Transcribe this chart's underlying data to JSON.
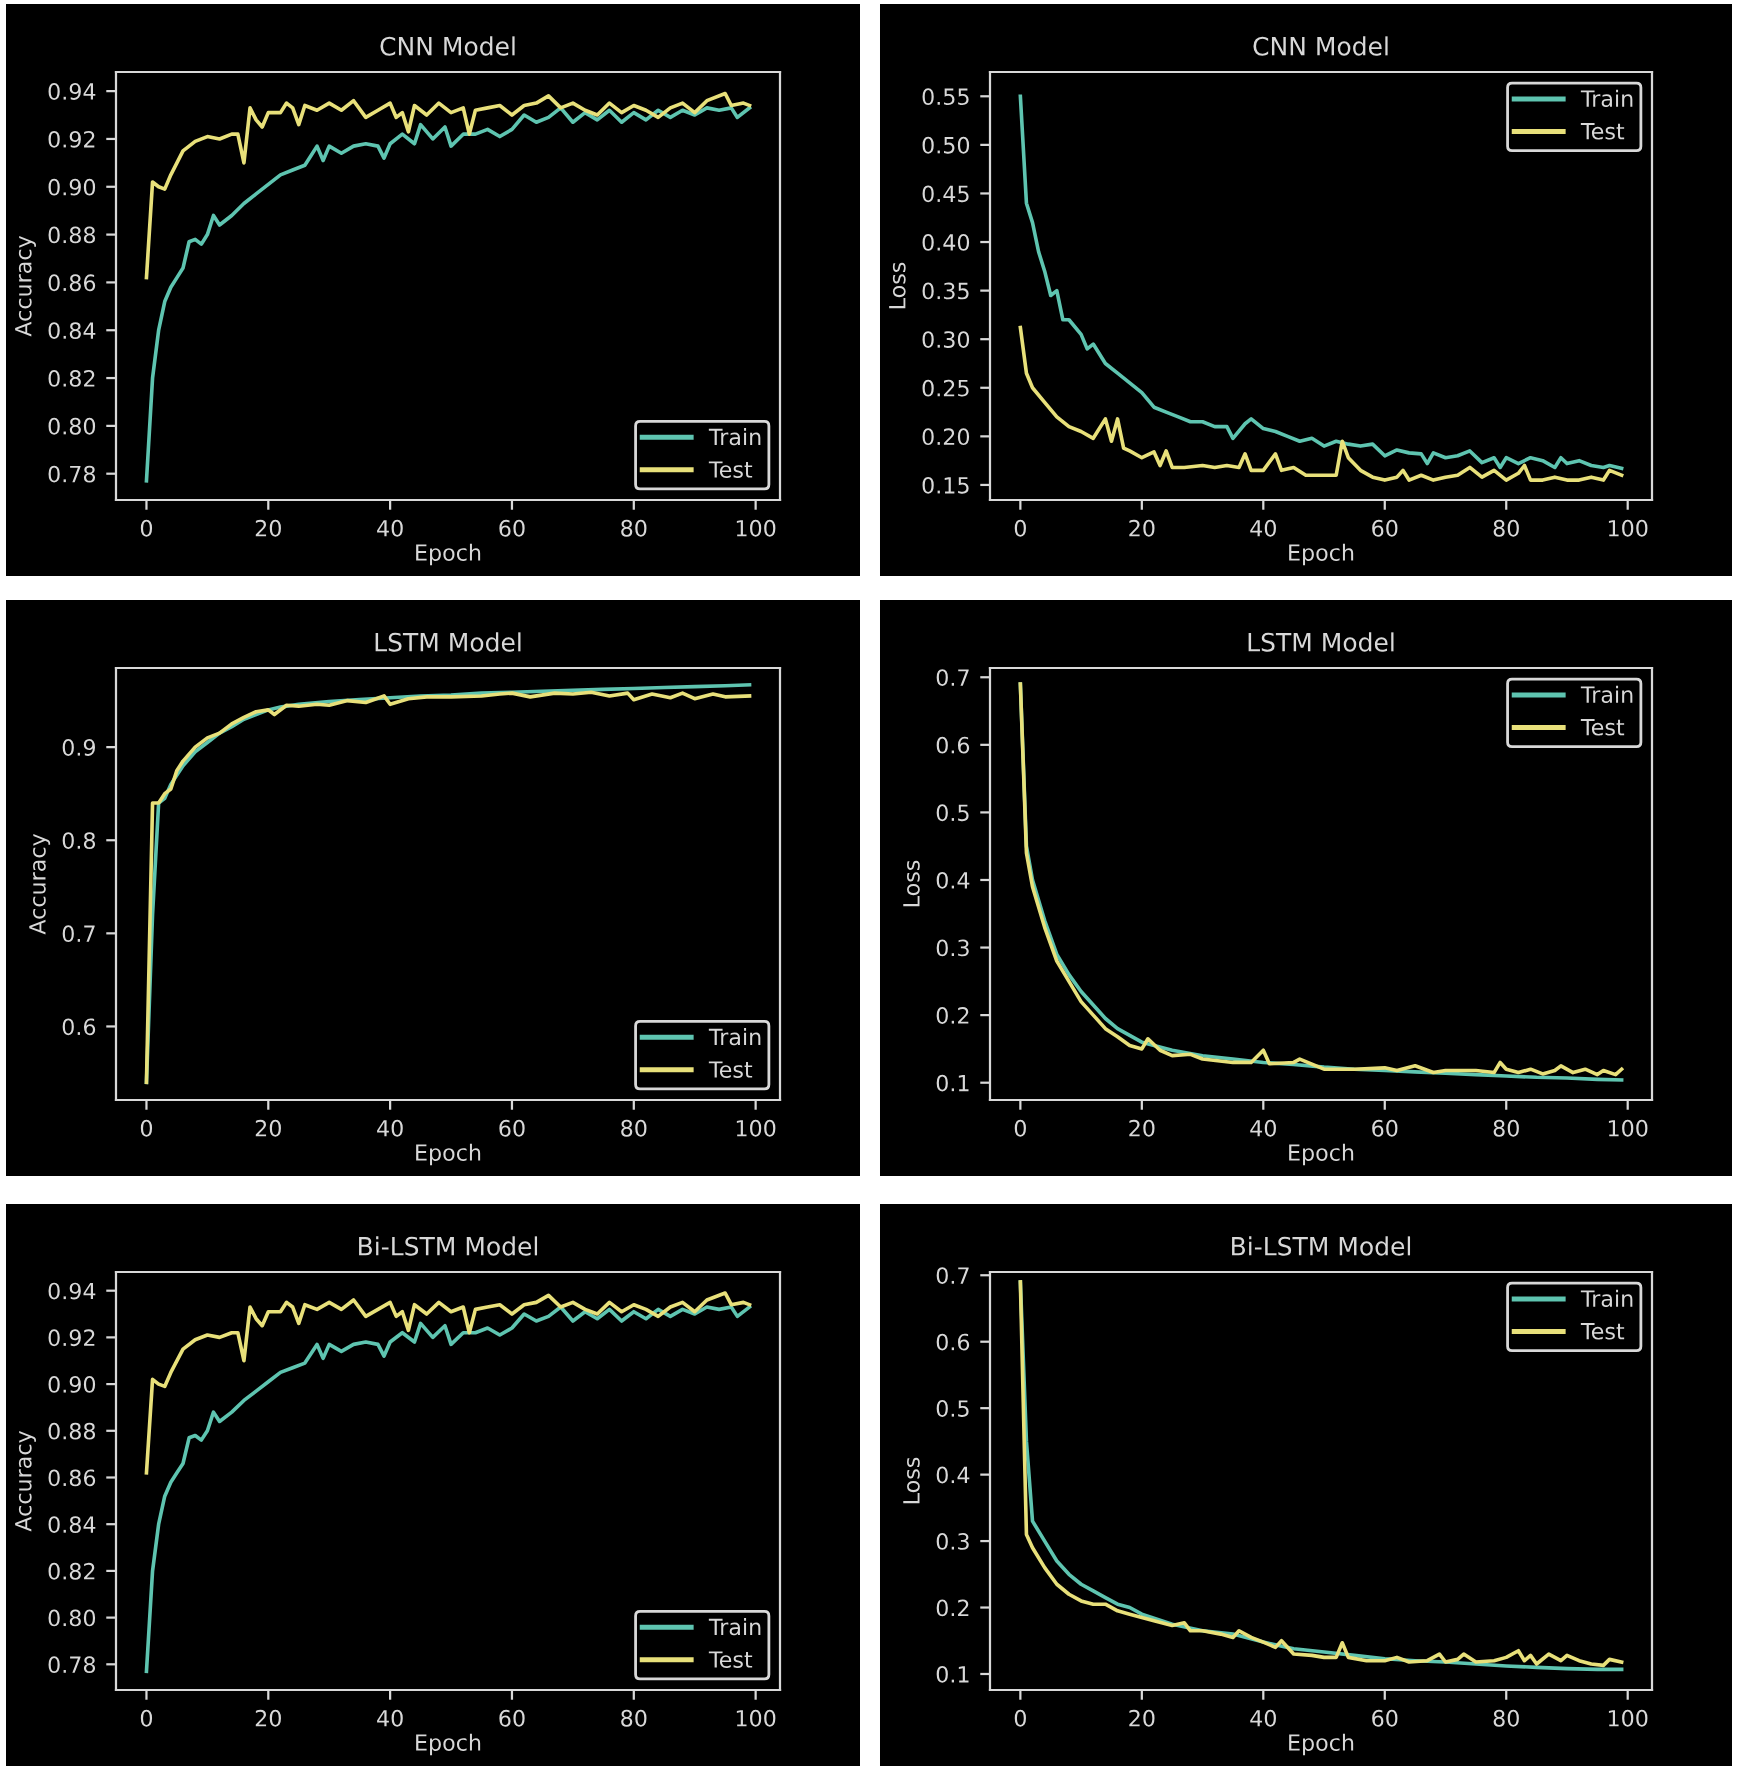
{
  "chart_data": [
    {
      "type": "line",
      "title": "CNN Model",
      "xlabel": "Epoch",
      "ylabel": "Accuracy",
      "xlim": [
        -5,
        104
      ],
      "xticks": [
        0,
        20,
        40,
        60,
        80,
        100
      ],
      "ylim": [
        0.769,
        0.948
      ],
      "yticks": [
        {
          "value": 0.78,
          "label": "0.78"
        },
        {
          "value": 0.8,
          "label": "0.80"
        },
        {
          "value": 0.82,
          "label": "0.82"
        },
        {
          "value": 0.84,
          "label": "0.84"
        },
        {
          "value": 0.86,
          "label": "0.86"
        },
        {
          "value": 0.88,
          "label": "0.88"
        },
        {
          "value": 0.9,
          "label": "0.90"
        },
        {
          "value": 0.92,
          "label": "0.92"
        },
        {
          "value": 0.94,
          "label": "0.94"
        }
      ],
      "legend": "bottom right",
      "series": [
        {
          "name": "Train",
          "color": "#5ec4b0",
          "x": [
            0,
            1,
            2,
            3,
            4,
            5,
            6,
            7,
            8,
            9,
            10,
            11,
            12,
            14,
            16,
            18,
            20,
            22,
            24,
            26,
            27,
            28,
            29,
            30,
            32,
            34,
            36,
            38,
            39,
            40,
            42,
            44,
            45,
            47,
            49,
            50,
            52,
            54,
            56,
            58,
            60,
            62,
            64,
            66,
            68,
            70,
            72,
            74,
            76,
            78,
            80,
            82,
            84,
            86,
            88,
            90,
            92,
            94,
            96,
            97,
            99
          ],
          "values": [
            0.777,
            0.82,
            0.84,
            0.852,
            0.858,
            0.862,
            0.866,
            0.877,
            0.878,
            0.876,
            0.88,
            0.888,
            0.884,
            0.888,
            0.893,
            0.897,
            0.901,
            0.905,
            0.907,
            0.909,
            0.913,
            0.917,
            0.911,
            0.917,
            0.914,
            0.917,
            0.918,
            0.917,
            0.912,
            0.918,
            0.922,
            0.918,
            0.926,
            0.92,
            0.925,
            0.917,
            0.922,
            0.922,
            0.924,
            0.921,
            0.924,
            0.93,
            0.927,
            0.929,
            0.933,
            0.927,
            0.931,
            0.928,
            0.932,
            0.927,
            0.931,
            0.928,
            0.932,
            0.929,
            0.932,
            0.93,
            0.933,
            0.932,
            0.933,
            0.929,
            0.933
          ]
        },
        {
          "name": "Test",
          "color": "#e8e07a",
          "x": [
            0,
            1,
            2,
            3,
            4,
            6,
            8,
            10,
            12,
            14,
            15,
            16,
            17,
            18,
            19,
            20,
            22,
            23,
            24,
            25,
            26,
            28,
            30,
            32,
            34,
            36,
            38,
            40,
            41,
            42,
            43,
            44,
            46,
            48,
            50,
            52,
            53,
            54,
            56,
            58,
            60,
            62,
            64,
            66,
            68,
            70,
            72,
            74,
            76,
            78,
            80,
            82,
            84,
            86,
            88,
            90,
            92,
            95,
            96,
            98,
            99
          ],
          "values": [
            0.862,
            0.902,
            0.9,
            0.899,
            0.905,
            0.915,
            0.919,
            0.921,
            0.92,
            0.922,
            0.922,
            0.91,
            0.933,
            0.928,
            0.925,
            0.931,
            0.931,
            0.935,
            0.933,
            0.926,
            0.934,
            0.932,
            0.935,
            0.932,
            0.936,
            0.929,
            0.932,
            0.935,
            0.929,
            0.931,
            0.923,
            0.934,
            0.93,
            0.935,
            0.931,
            0.933,
            0.922,
            0.932,
            0.933,
            0.934,
            0.93,
            0.934,
            0.935,
            0.938,
            0.933,
            0.935,
            0.932,
            0.93,
            0.935,
            0.931,
            0.934,
            0.932,
            0.929,
            0.933,
            0.935,
            0.931,
            0.936,
            0.939,
            0.934,
            0.935,
            0.934
          ]
        }
      ]
    },
    {
      "type": "line",
      "title": "CNN Model",
      "xlabel": "Epoch",
      "ylabel": "Loss",
      "xlim": [
        -5,
        104
      ],
      "xticks": [
        0,
        20,
        40,
        60,
        80,
        100
      ],
      "ylim": [
        0.1345,
        0.575
      ],
      "yticks": [
        {
          "value": 0.15,
          "label": "0.15"
        },
        {
          "value": 0.2,
          "label": "0.20"
        },
        {
          "value": 0.25,
          "label": "0.25"
        },
        {
          "value": 0.3,
          "label": "0.30"
        },
        {
          "value": 0.35,
          "label": "0.35"
        },
        {
          "value": 0.4,
          "label": "0.40"
        },
        {
          "value": 0.45,
          "label": "0.45"
        },
        {
          "value": 0.5,
          "label": "0.50"
        },
        {
          "value": 0.55,
          "label": "0.55"
        }
      ],
      "legend": "top right",
      "series": [
        {
          "name": "Train",
          "color": "#5ec4b0",
          "x": [
            0,
            1,
            2,
            3,
            4,
            5,
            6,
            7,
            8,
            10,
            11,
            12,
            14,
            16,
            18,
            20,
            22,
            24,
            26,
            28,
            30,
            32,
            34,
            35,
            37,
            38,
            40,
            42,
            44,
            46,
            48,
            50,
            52,
            54,
            56,
            58,
            60,
            62,
            64,
            66,
            67,
            68,
            70,
            72,
            74,
            76,
            78,
            79,
            80,
            82,
            84,
            86,
            88,
            89,
            90,
            92,
            94,
            96,
            97,
            99
          ],
          "values": [
            0.55,
            0.44,
            0.42,
            0.39,
            0.37,
            0.345,
            0.35,
            0.32,
            0.32,
            0.305,
            0.29,
            0.295,
            0.275,
            0.265,
            0.255,
            0.245,
            0.23,
            0.225,
            0.22,
            0.215,
            0.215,
            0.21,
            0.21,
            0.198,
            0.213,
            0.218,
            0.208,
            0.205,
            0.2,
            0.195,
            0.198,
            0.19,
            0.195,
            0.192,
            0.19,
            0.192,
            0.18,
            0.186,
            0.183,
            0.182,
            0.172,
            0.183,
            0.178,
            0.18,
            0.185,
            0.173,
            0.178,
            0.168,
            0.178,
            0.172,
            0.178,
            0.175,
            0.168,
            0.178,
            0.172,
            0.175,
            0.17,
            0.168,
            0.17,
            0.167
          ]
        },
        {
          "name": "Test",
          "color": "#e8e07a",
          "x": [
            0,
            1,
            2,
            4,
            6,
            8,
            10,
            12,
            14,
            15,
            16,
            17,
            18,
            20,
            22,
            23,
            24,
            25,
            27,
            30,
            32,
            34,
            36,
            37,
            38,
            40,
            42,
            43,
            45,
            47,
            50,
            52,
            53,
            54,
            56,
            58,
            60,
            62,
            63,
            64,
            66,
            68,
            70,
            72,
            74,
            76,
            78,
            80,
            82,
            83,
            84,
            86,
            88,
            90,
            92,
            94,
            96,
            97,
            99
          ],
          "values": [
            0.312,
            0.265,
            0.25,
            0.235,
            0.22,
            0.21,
            0.205,
            0.198,
            0.218,
            0.195,
            0.218,
            0.188,
            0.185,
            0.178,
            0.184,
            0.17,
            0.185,
            0.168,
            0.168,
            0.17,
            0.168,
            0.17,
            0.168,
            0.182,
            0.165,
            0.165,
            0.182,
            0.165,
            0.168,
            0.16,
            0.16,
            0.16,
            0.195,
            0.178,
            0.165,
            0.158,
            0.155,
            0.158,
            0.165,
            0.155,
            0.16,
            0.155,
            0.158,
            0.16,
            0.168,
            0.158,
            0.165,
            0.155,
            0.162,
            0.17,
            0.155,
            0.155,
            0.158,
            0.155,
            0.155,
            0.158,
            0.155,
            0.165,
            0.16
          ]
        }
      ]
    },
    {
      "type": "line",
      "title": "LSTM Model",
      "xlabel": "Epoch",
      "ylabel": "Accuracy",
      "xlim": [
        -5,
        104
      ],
      "xticks": [
        0,
        20,
        40,
        60,
        80,
        100
      ],
      "ylim": [
        0.521,
        0.985
      ],
      "yticks": [
        0.6,
        0.7,
        0.8,
        0.9
      ],
      "legend": "bottom right",
      "series": [
        {
          "name": "Train",
          "color": "#5ec4b0",
          "x": [
            0,
            1,
            2,
            3,
            4,
            6,
            8,
            10,
            12,
            14,
            16,
            18,
            20,
            22,
            25,
            30,
            35,
            40,
            45,
            50,
            55,
            60,
            65,
            70,
            75,
            80,
            85,
            90,
            95,
            99
          ],
          "values": [
            0.54,
            0.72,
            0.84,
            0.845,
            0.86,
            0.88,
            0.895,
            0.905,
            0.915,
            0.922,
            0.93,
            0.935,
            0.94,
            0.943,
            0.946,
            0.949,
            0.951,
            0.953,
            0.955,
            0.956,
            0.958,
            0.959,
            0.96,
            0.961,
            0.962,
            0.963,
            0.964,
            0.965,
            0.966,
            0.967
          ]
        },
        {
          "name": "Test",
          "color": "#e8e07a",
          "x": [
            0,
            1,
            2,
            3,
            4,
            5,
            6,
            8,
            10,
            12,
            14,
            16,
            18,
            20,
            21,
            23,
            25,
            28,
            30,
            33,
            36,
            39,
            40,
            43,
            46,
            50,
            55,
            58,
            60,
            63,
            67,
            70,
            73,
            76,
            79,
            80,
            83,
            86,
            88,
            90,
            93,
            95,
            99
          ],
          "values": [
            0.54,
            0.84,
            0.84,
            0.85,
            0.855,
            0.875,
            0.885,
            0.9,
            0.91,
            0.915,
            0.925,
            0.932,
            0.938,
            0.94,
            0.935,
            0.945,
            0.944,
            0.946,
            0.945,
            0.95,
            0.948,
            0.955,
            0.946,
            0.952,
            0.954,
            0.954,
            0.955,
            0.957,
            0.958,
            0.954,
            0.958,
            0.957,
            0.959,
            0.955,
            0.958,
            0.951,
            0.957,
            0.953,
            0.958,
            0.952,
            0.957,
            0.954,
            0.955
          ]
        }
      ]
    },
    {
      "type": "line",
      "title": "LSTM Model",
      "xlabel": "Epoch",
      "ylabel": "Loss",
      "xlim": [
        -5,
        104
      ],
      "xticks": [
        0,
        20,
        40,
        60,
        80,
        100
      ],
      "ylim": [
        0.0744,
        0.7137
      ],
      "yticks": [
        0.1,
        0.2,
        0.3,
        0.4,
        0.5,
        0.6,
        0.7
      ],
      "legend": "top right",
      "series": [
        {
          "name": "Train",
          "color": "#5ec4b0",
          "x": [
            0,
            1,
            2,
            4,
            6,
            8,
            10,
            12,
            14,
            16,
            18,
            20,
            22,
            25,
            30,
            35,
            40,
            45,
            50,
            55,
            60,
            65,
            70,
            75,
            80,
            85,
            90,
            95,
            99
          ],
          "values": [
            0.69,
            0.45,
            0.4,
            0.34,
            0.29,
            0.26,
            0.235,
            0.215,
            0.195,
            0.18,
            0.17,
            0.16,
            0.155,
            0.148,
            0.14,
            0.135,
            0.13,
            0.127,
            0.123,
            0.12,
            0.118,
            0.116,
            0.114,
            0.112,
            0.11,
            0.108,
            0.107,
            0.105,
            0.104
          ]
        },
        {
          "name": "Test",
          "color": "#e8e07a",
          "x": [
            0,
            1,
            2,
            4,
            6,
            8,
            10,
            12,
            14,
            16,
            18,
            20,
            21,
            23,
            25,
            28,
            30,
            35,
            38,
            40,
            41,
            45,
            46,
            50,
            55,
            60,
            62,
            65,
            68,
            70,
            75,
            78,
            79,
            80,
            82,
            84,
            86,
            88,
            89,
            91,
            93,
            95,
            96,
            98,
            99
          ],
          "values": [
            0.69,
            0.44,
            0.39,
            0.33,
            0.28,
            0.25,
            0.22,
            0.2,
            0.18,
            0.168,
            0.155,
            0.15,
            0.165,
            0.148,
            0.14,
            0.142,
            0.135,
            0.13,
            0.13,
            0.148,
            0.128,
            0.13,
            0.135,
            0.12,
            0.12,
            0.122,
            0.118,
            0.125,
            0.115,
            0.118,
            0.118,
            0.115,
            0.13,
            0.12,
            0.115,
            0.12,
            0.113,
            0.118,
            0.125,
            0.115,
            0.12,
            0.112,
            0.118,
            0.112,
            0.12
          ]
        }
      ]
    },
    {
      "type": "line",
      "title": "Bi-LSTM Model",
      "xlabel": "Epoch",
      "ylabel": "Accuracy",
      "xlim": [
        -5,
        104
      ],
      "xticks": [
        0,
        20,
        40,
        60,
        80,
        100
      ],
      "ylim": [
        0.769,
        0.948
      ],
      "yticks": [
        {
          "value": 0.78,
          "label": "0.78"
        },
        {
          "value": 0.8,
          "label": "0.80"
        },
        {
          "value": 0.82,
          "label": "0.82"
        },
        {
          "value": 0.84,
          "label": "0.84"
        },
        {
          "value": 0.86,
          "label": "0.86"
        },
        {
          "value": 0.88,
          "label": "0.88"
        },
        {
          "value": 0.9,
          "label": "0.90"
        },
        {
          "value": 0.92,
          "label": "0.92"
        },
        {
          "value": 0.94,
          "label": "0.94"
        }
      ],
      "legend": "bottom right",
      "series": [
        {
          "name": "Train",
          "color": "#5ec4b0",
          "x": [
            0,
            1,
            2,
            3,
            4,
            5,
            6,
            7,
            8,
            9,
            10,
            11,
            12,
            14,
            16,
            18,
            20,
            22,
            24,
            26,
            27,
            28,
            29,
            30,
            32,
            34,
            36,
            38,
            39,
            40,
            42,
            44,
            45,
            47,
            49,
            50,
            52,
            54,
            56,
            58,
            60,
            62,
            64,
            66,
            68,
            70,
            72,
            74,
            76,
            78,
            80,
            82,
            84,
            86,
            88,
            90,
            92,
            94,
            96,
            97,
            99
          ],
          "values": [
            0.777,
            0.82,
            0.84,
            0.852,
            0.858,
            0.862,
            0.866,
            0.877,
            0.878,
            0.876,
            0.88,
            0.888,
            0.884,
            0.888,
            0.893,
            0.897,
            0.901,
            0.905,
            0.907,
            0.909,
            0.913,
            0.917,
            0.911,
            0.917,
            0.914,
            0.917,
            0.918,
            0.917,
            0.912,
            0.918,
            0.922,
            0.918,
            0.926,
            0.92,
            0.925,
            0.917,
            0.922,
            0.922,
            0.924,
            0.921,
            0.924,
            0.93,
            0.927,
            0.929,
            0.933,
            0.927,
            0.931,
            0.928,
            0.932,
            0.927,
            0.931,
            0.928,
            0.932,
            0.929,
            0.932,
            0.93,
            0.933,
            0.932,
            0.933,
            0.929,
            0.933
          ]
        },
        {
          "name": "Test",
          "color": "#e8e07a",
          "x": [
            0,
            1,
            2,
            3,
            4,
            6,
            8,
            10,
            12,
            14,
            15,
            16,
            17,
            18,
            19,
            20,
            22,
            23,
            24,
            25,
            26,
            28,
            30,
            32,
            34,
            36,
            38,
            40,
            41,
            42,
            43,
            44,
            46,
            48,
            50,
            52,
            53,
            54,
            56,
            58,
            60,
            62,
            64,
            66,
            68,
            70,
            72,
            74,
            76,
            78,
            80,
            82,
            84,
            86,
            88,
            90,
            92,
            95,
            96,
            98,
            99
          ],
          "values": [
            0.862,
            0.902,
            0.9,
            0.899,
            0.905,
            0.915,
            0.919,
            0.921,
            0.92,
            0.922,
            0.922,
            0.91,
            0.933,
            0.928,
            0.925,
            0.931,
            0.931,
            0.935,
            0.933,
            0.926,
            0.934,
            0.932,
            0.935,
            0.932,
            0.936,
            0.929,
            0.932,
            0.935,
            0.929,
            0.931,
            0.923,
            0.934,
            0.93,
            0.935,
            0.931,
            0.933,
            0.922,
            0.932,
            0.933,
            0.934,
            0.93,
            0.934,
            0.935,
            0.938,
            0.933,
            0.935,
            0.932,
            0.93,
            0.935,
            0.931,
            0.934,
            0.932,
            0.929,
            0.933,
            0.935,
            0.931,
            0.936,
            0.939,
            0.934,
            0.935,
            0.934
          ]
        }
      ]
    },
    {
      "type": "line",
      "title": "Bi-LSTM Model",
      "xlabel": "Epoch",
      "ylabel": "Loss",
      "xlim": [
        -5,
        104
      ],
      "xticks": [
        0,
        20,
        40,
        60,
        80,
        100
      ],
      "ylim": [
        0.0759,
        0.7049
      ],
      "yticks": [
        0.1,
        0.2,
        0.3,
        0.4,
        0.5,
        0.6,
        0.7
      ],
      "legend": "top right",
      "series": [
        {
          "name": "Train",
          "color": "#5ec4b0",
          "x": [
            0,
            1,
            2,
            4,
            6,
            8,
            10,
            12,
            14,
            16,
            18,
            20,
            25,
            30,
            35,
            40,
            45,
            50,
            55,
            60,
            65,
            70,
            75,
            80,
            85,
            90,
            95,
            99
          ],
          "values": [
            0.69,
            0.45,
            0.33,
            0.3,
            0.27,
            0.25,
            0.235,
            0.225,
            0.215,
            0.205,
            0.2,
            0.19,
            0.175,
            0.165,
            0.16,
            0.148,
            0.138,
            0.133,
            0.128,
            0.123,
            0.12,
            0.118,
            0.115,
            0.112,
            0.11,
            0.108,
            0.107,
            0.107
          ]
        },
        {
          "name": "Test",
          "color": "#e8e07a",
          "x": [
            0,
            1,
            2,
            4,
            6,
            8,
            10,
            12,
            14,
            16,
            18,
            20,
            22,
            25,
            27,
            28,
            30,
            33,
            35,
            36,
            38,
            40,
            42,
            43,
            45,
            48,
            50,
            52,
            53,
            54,
            57,
            60,
            62,
            64,
            67,
            69,
            70,
            72,
            73,
            75,
            78,
            80,
            82,
            83,
            84,
            85,
            87,
            89,
            90,
            92,
            94,
            96,
            97,
            99
          ],
          "values": [
            0.69,
            0.31,
            0.29,
            0.26,
            0.235,
            0.22,
            0.21,
            0.205,
            0.205,
            0.195,
            0.19,
            0.185,
            0.18,
            0.173,
            0.177,
            0.165,
            0.165,
            0.16,
            0.155,
            0.165,
            0.155,
            0.148,
            0.14,
            0.15,
            0.13,
            0.128,
            0.125,
            0.125,
            0.147,
            0.125,
            0.12,
            0.12,
            0.125,
            0.118,
            0.12,
            0.13,
            0.118,
            0.122,
            0.13,
            0.118,
            0.12,
            0.125,
            0.135,
            0.12,
            0.128,
            0.115,
            0.13,
            0.12,
            0.128,
            0.12,
            0.115,
            0.113,
            0.122,
            0.118
          ]
        }
      ]
    }
  ]
}
